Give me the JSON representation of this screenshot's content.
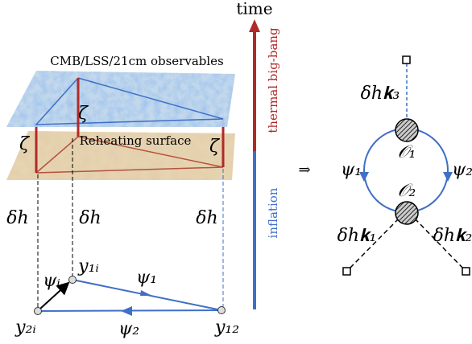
{
  "axis": {
    "title": "time",
    "upper": "thermal big-bang",
    "lower": "inflation"
  },
  "left": {
    "observables": "CMB/LSS/21cm observables",
    "reheating": "Reheating surface",
    "zeta": [
      "ζ",
      "ζ",
      "ζ"
    ],
    "delta_h": [
      "δh",
      "δh",
      "δh"
    ],
    "psi_i": "ψᵢ",
    "y1i": "y₁ᵢ",
    "psi_1": "ψ₁",
    "y2i": "y₂ᵢ",
    "psi_2": "ψ₂",
    "y12": "y₁₂"
  },
  "implies": "⇒",
  "right": {
    "dh_k3": "δh𝐤₃",
    "O1": "𝒪₁",
    "psi_1": "ψ₁",
    "psi_2": "ψ₂",
    "O2": "𝒪₂",
    "dh_k1": "δh𝐤₁",
    "dh_k2": "δh𝐤₂"
  }
}
